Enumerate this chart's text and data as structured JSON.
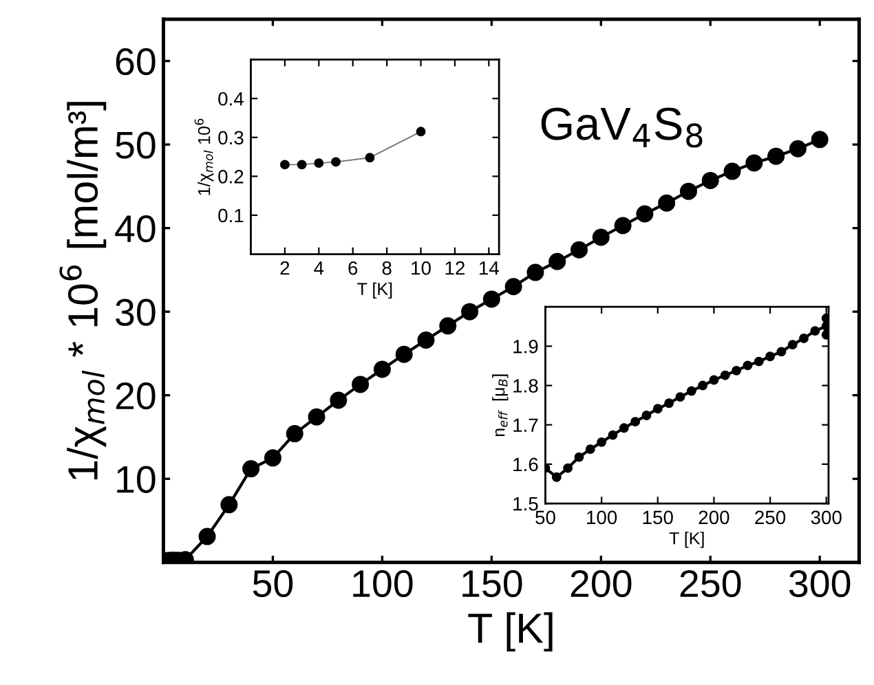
{
  "chart_data": [
    {
      "type": "line",
      "xlabel": "T [K]",
      "ylabel": "1/χ$_{mol}$ * 10$^{6}$ [mol/m³]",
      "annotations": [
        "GaV$_{4}$S$_{8}$"
      ],
      "x": [
        2,
        3,
        4,
        5,
        7,
        10,
        20,
        30,
        40,
        50,
        60,
        70,
        80,
        90,
        100,
        110,
        120,
        130,
        140,
        150,
        160,
        170,
        180,
        190,
        200,
        210,
        220,
        230,
        240,
        250,
        260,
        270,
        280,
        290,
        300
      ],
      "series": [
        {
          "color": "#000000",
          "values": [
            0.23,
            0.23,
            0.24,
            0.24,
            0.25,
            0.32,
            3.1,
            6.9,
            11.2,
            12.5,
            15.4,
            17.4,
            19.4,
            21.3,
            23.1,
            24.9,
            26.6,
            28.3,
            30.0,
            31.5,
            33.0,
            34.7,
            36.0,
            37.4,
            38.9,
            40.3,
            41.7,
            43.0,
            44.4,
            45.7,
            46.8,
            47.8,
            48.6,
            49.5,
            50.6
          ]
        }
      ],
      "xlim": [
        0,
        318
      ],
      "ylim": [
        0,
        65
      ],
      "xticks": [
        50,
        100,
        150,
        200,
        250,
        300
      ],
      "yticks": [
        10,
        20,
        30,
        40,
        50,
        60
      ],
      "marker": "circle",
      "line_style": "solid",
      "grid": false,
      "legend": false
    },
    {
      "type": "line",
      "xlabel": "T [K]",
      "ylabel": "1/χ$_{mol}$ 10$^{6}$",
      "x": [
        2,
        3,
        4,
        5,
        7,
        10
      ],
      "series": [
        {
          "color": "#000000",
          "values": [
            0.23,
            0.23,
            0.234,
            0.237,
            0.248,
            0.315
          ]
        }
      ],
      "xlim": [
        0,
        14.6
      ],
      "ylim": [
        0,
        0.5
      ],
      "xticks": [
        2,
        4,
        6,
        8,
        10,
        12,
        14
      ],
      "yticks": [
        0.1,
        0.2,
        0.3,
        0.4
      ],
      "marker": "circle",
      "line_style": "solid",
      "grid": false,
      "legend": false
    },
    {
      "type": "line",
      "xlabel": "T [K]",
      "ylabel": "n$_{eff}$  [μ$_{B}$]",
      "x": [
        50,
        60,
        70,
        80,
        90,
        100,
        110,
        120,
        130,
        140,
        150,
        160,
        170,
        180,
        190,
        200,
        210,
        220,
        230,
        240,
        250,
        260,
        270,
        280,
        290,
        300,
        300,
        300
      ],
      "series": [
        {
          "color": "#000000",
          "values": [
            1.59,
            1.567,
            1.59,
            1.618,
            1.638,
            1.656,
            1.674,
            1.692,
            1.708,
            1.724,
            1.741,
            1.755,
            1.771,
            1.786,
            1.8,
            1.814,
            1.826,
            1.838,
            1.851,
            1.861,
            1.874,
            1.886,
            1.904,
            1.92,
            1.939,
            1.951,
            1.971,
            1.929
          ]
        }
      ],
      "xlim": [
        50,
        302
      ],
      "ylim": [
        1.5,
        2.0
      ],
      "xticks": [
        50,
        100,
        150,
        200,
        250,
        300
      ],
      "yticks": [
        1.5,
        1.6,
        1.7,
        1.8,
        1.9
      ],
      "marker": "circle",
      "line_style": "solid",
      "grid": false,
      "legend": false
    }
  ]
}
